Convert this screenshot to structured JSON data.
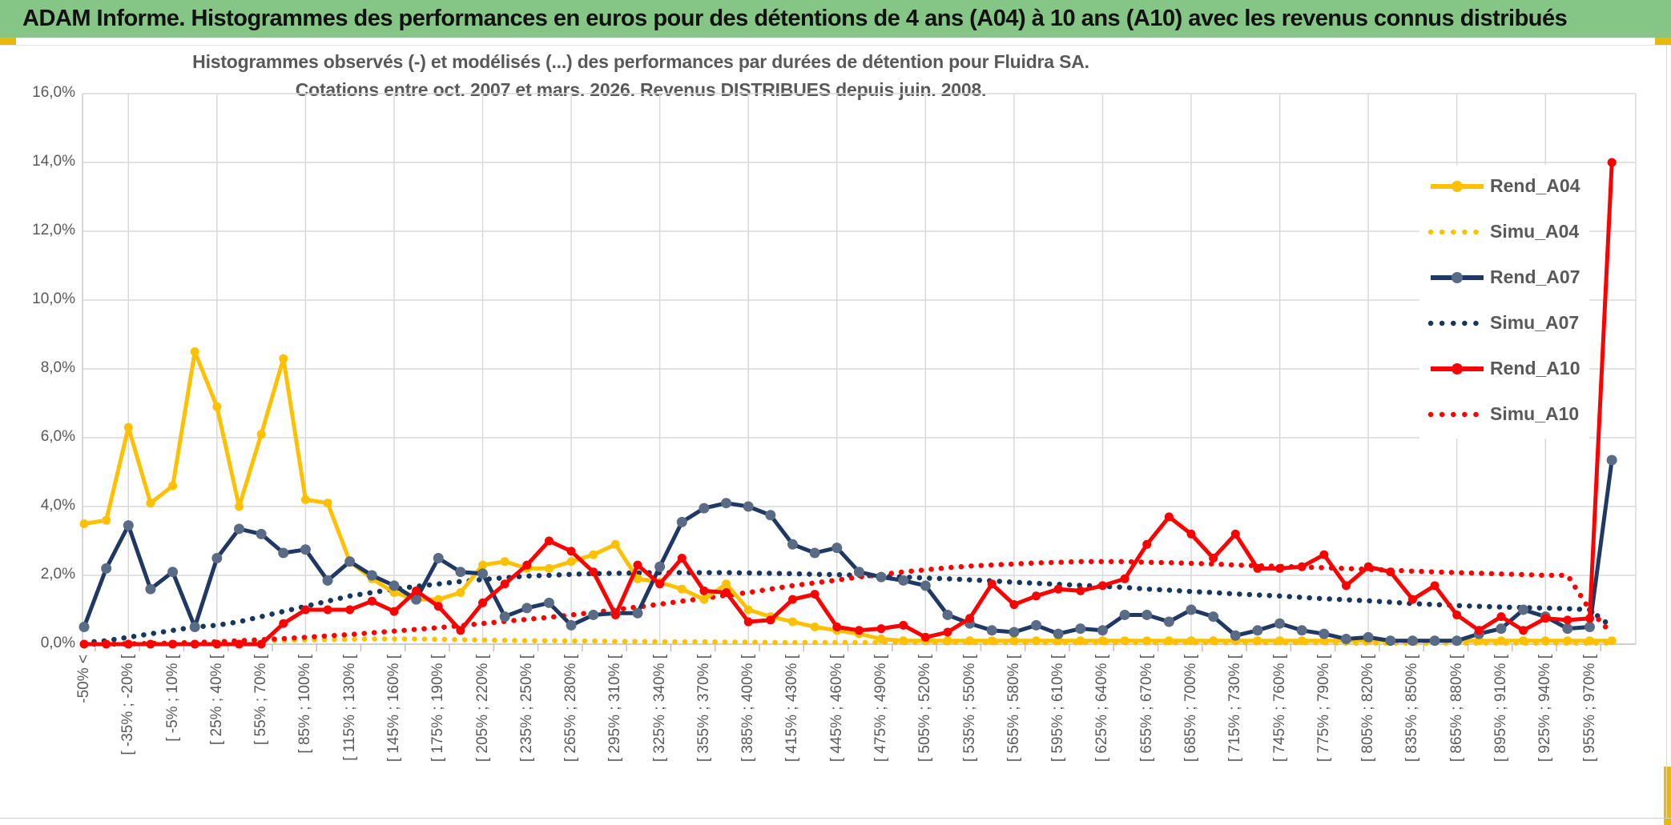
{
  "header": {
    "title": "ADAM Informe. Histogrammes des performances en euros pour des détentions de 4 ans (A04) à 10 ans (A10) avec les revenus connus distribués"
  },
  "accent_color": "#E8B80A",
  "header_color": "#85C585",
  "chart_data": {
    "type": "line",
    "title_line1": "Histogrammes observés (-) et modélisés (...) des performances par durées de détention pour Fluidra SA.",
    "title_line2": "Cotations entre oct. 2007 et mars. 2026. Revenus DISTRIBUES depuis juin. 2008.",
    "ylabel": "",
    "xlabel": "",
    "ylim": [
      0,
      16
    ],
    "grid": true,
    "legend_position": "right-inside",
    "y_ticks": [
      "0,0%",
      "2,0%",
      "4,0%",
      "6,0%",
      "8,0%",
      "10,0%",
      "12,0%",
      "14,0%",
      "16,0%"
    ],
    "n_categories": 70,
    "x_label_every": 2,
    "x_tick_labels": [
      "-50% <",
      "[ -35% ; -20% [",
      "[ -5% ; 10% [",
      "[ 25% ; 40% [",
      "[ 55% ; 70% [",
      "[ 85% ; 100% [",
      "[ 115% ; 130% [",
      "[ 145% ; 160% [",
      "[ 175% ; 190% [",
      "[ 205% ; 220% [",
      "[ 235% ; 250% [",
      "[ 265% ; 280% [",
      "[ 295% ; 310% [",
      "[ 325% ; 340% [",
      "[ 355% ; 370% [",
      "[ 385% ; 400% [",
      "[ 415% ; 430% [",
      "[ 445% ; 460% [",
      "[ 475% ; 490% [",
      "[ 505% ; 520% [",
      "[ 535% ; 550% [",
      "[ 565% ; 580% [",
      "[ 595% ; 610% [",
      "[ 625% ; 640% [",
      "[ 655% ; 670% [",
      "[ 685% ; 700% [",
      "[ 715% ; 730% [",
      "[ 745% ; 760% [",
      "[ 775% ; 790% [",
      "[ 805% ; 820% [",
      "[ 835% ; 850% [",
      "[ 865% ; 880% [",
      "[ 895% ; 910% [",
      "[ 925% ; 940% [",
      "[ 955% ; 970% ["
    ],
    "series": [
      {
        "name": "Rend_A04",
        "style": "solid",
        "color": "#FFC000",
        "marker_color": "#FFC000",
        "values": [
          3.5,
          3.6,
          6.3,
          4.1,
          4.6,
          8.5,
          6.9,
          4.0,
          6.1,
          8.3,
          4.2,
          4.1,
          2.4,
          1.9,
          1.5,
          1.3,
          1.3,
          1.5,
          2.3,
          2.4,
          2.2,
          2.2,
          2.4,
          2.6,
          2.9,
          1.9,
          1.8,
          1.6,
          1.3,
          1.75,
          1.0,
          0.8,
          0.65,
          0.5,
          0.4,
          0.3,
          0.15,
          0.1,
          0.1,
          0.1,
          0.1,
          0.1,
          0.1,
          0.1,
          0.1,
          0.1,
          0.1,
          0.1,
          0.1,
          0.1,
          0.1,
          0.1,
          0.1,
          0.1,
          0.1,
          0.1,
          0.1,
          0.1,
          0.1,
          0.1,
          0.1,
          0.1,
          0.1,
          0.1,
          0.1,
          0.1,
          0.1,
          0.1,
          0.1,
          0.1
        ]
      },
      {
        "name": "Simu_A04",
        "style": "dotted",
        "color": "#FFC000",
        "values": [
          0.0,
          0.0,
          0.01,
          0.02,
          0.03,
          0.05,
          0.06,
          0.08,
          0.1,
          0.11,
          0.12,
          0.13,
          0.14,
          0.15,
          0.15,
          0.15,
          0.14,
          0.13,
          0.12,
          0.11,
          0.1,
          0.1,
          0.09,
          0.09,
          0.08,
          0.08,
          0.07,
          0.07,
          0.07,
          0.06,
          0.06,
          0.05,
          0.05,
          0.05,
          0.05,
          0.05,
          0.05,
          0.05,
          0.05,
          0.05,
          0.05,
          0.04,
          0.04,
          0.04,
          0.04,
          0.04,
          0.04,
          0.04,
          0.04,
          0.04,
          0.04,
          0.04,
          0.04,
          0.04,
          0.04,
          0.04,
          0.04,
          0.03,
          0.03,
          0.03,
          0.03,
          0.03,
          0.03,
          0.03,
          0.03,
          0.03,
          0.03,
          0.03,
          0.03,
          0.03
        ]
      },
      {
        "name": "Rend_A07",
        "style": "solid",
        "color": "#1F3864",
        "marker_color": "#5A6B85",
        "values": [
          0.5,
          2.2,
          3.45,
          1.6,
          2.1,
          0.5,
          2.5,
          3.35,
          3.2,
          2.65,
          2.75,
          1.85,
          2.4,
          2.0,
          1.7,
          1.3,
          2.5,
          2.1,
          2.05,
          0.8,
          1.05,
          1.2,
          0.55,
          0.85,
          0.9,
          0.9,
          2.25,
          3.55,
          3.95,
          4.1,
          4.0,
          3.75,
          2.9,
          2.65,
          2.8,
          2.1,
          1.95,
          1.85,
          1.7,
          0.85,
          0.6,
          0.4,
          0.35,
          0.55,
          0.3,
          0.45,
          0.4,
          0.85,
          0.85,
          0.65,
          1.0,
          0.8,
          0.25,
          0.4,
          0.6,
          0.4,
          0.3,
          0.15,
          0.2,
          0.1,
          0.1,
          0.1,
          0.1,
          0.3,
          0.45,
          1.0,
          0.8,
          0.45,
          0.5,
          5.35
        ]
      },
      {
        "name": "Simu_A07",
        "style": "dotted",
        "color": "#17375E",
        "values": [
          0.05,
          0.1,
          0.2,
          0.3,
          0.4,
          0.5,
          0.55,
          0.65,
          0.8,
          0.95,
          1.1,
          1.25,
          1.4,
          1.5,
          1.6,
          1.68,
          1.75,
          1.82,
          1.88,
          1.93,
          1.98,
          2.0,
          2.03,
          2.05,
          2.06,
          2.07,
          2.08,
          2.08,
          2.08,
          2.08,
          2.07,
          2.06,
          2.05,
          2.03,
          2.02,
          2.0,
          1.98,
          1.95,
          1.92,
          1.9,
          1.87,
          1.84,
          1.8,
          1.77,
          1.74,
          1.71,
          1.68,
          1.65,
          1.6,
          1.57,
          1.53,
          1.5,
          1.46,
          1.43,
          1.4,
          1.36,
          1.32,
          1.29,
          1.26,
          1.22,
          1.18,
          1.15,
          1.12,
          1.1,
          1.08,
          1.06,
          1.05,
          1.03,
          1.0,
          0.5
        ]
      },
      {
        "name": "Rend_A10",
        "style": "solid",
        "color": "#FE0000",
        "marker_color": "#FE0000",
        "values": [
          0.0,
          0.0,
          0.0,
          0.0,
          0.0,
          0.0,
          0.0,
          0.0,
          0.0,
          0.6,
          1.0,
          1.0,
          1.0,
          1.25,
          0.95,
          1.55,
          1.1,
          0.4,
          1.2,
          1.75,
          2.3,
          3.0,
          2.7,
          2.1,
          0.85,
          2.3,
          1.75,
          2.5,
          1.55,
          1.5,
          0.65,
          0.7,
          1.3,
          1.45,
          0.5,
          0.4,
          0.45,
          0.55,
          0.2,
          0.35,
          0.75,
          1.75,
          1.15,
          1.4,
          1.6,
          1.55,
          1.7,
          1.9,
          2.9,
          3.7,
          3.2,
          2.5,
          3.2,
          2.2,
          2.2,
          2.25,
          2.6,
          1.7,
          2.25,
          2.1,
          1.3,
          1.7,
          0.85,
          0.4,
          0.8,
          0.4,
          0.75,
          0.7,
          0.75,
          14.0
        ]
      },
      {
        "name": "Simu_A10",
        "style": "dotted",
        "color": "#FE0000",
        "values": [
          0.0,
          0.0,
          0.01,
          0.02,
          0.03,
          0.05,
          0.07,
          0.1,
          0.13,
          0.16,
          0.2,
          0.24,
          0.28,
          0.33,
          0.38,
          0.43,
          0.48,
          0.54,
          0.6,
          0.66,
          0.72,
          0.78,
          0.85,
          0.92,
          1.0,
          1.08,
          1.16,
          1.25,
          1.33,
          1.42,
          1.5,
          1.6,
          1.7,
          1.78,
          1.86,
          1.95,
          2.02,
          2.1,
          2.16,
          2.22,
          2.27,
          2.3,
          2.33,
          2.36,
          2.38,
          2.4,
          2.4,
          2.4,
          2.38,
          2.37,
          2.35,
          2.33,
          2.3,
          2.28,
          2.26,
          2.24,
          2.22,
          2.2,
          2.17,
          2.15,
          2.12,
          2.1,
          2.08,
          2.06,
          2.04,
          2.02,
          2.0,
          2.0,
          1.0,
          0.3
        ]
      }
    ]
  }
}
